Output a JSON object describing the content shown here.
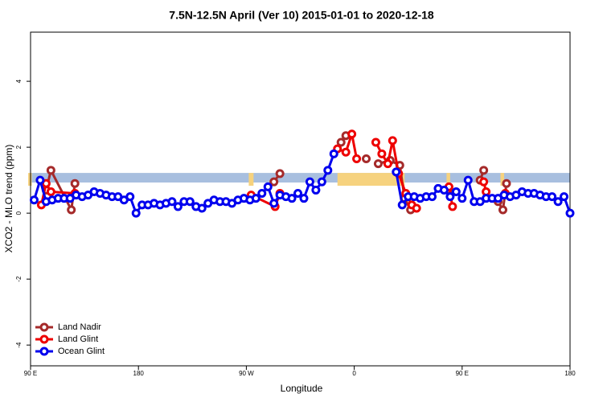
{
  "chart_data": {
    "type": "line",
    "title": "7.5N-12.5N April (Ver 10)   2015-01-01 to 2020-12-18",
    "x_label": "Longitude",
    "y_label": "XCO2 - MLO trend (ppm)",
    "xlim": [
      90,
      540
    ],
    "xticks": [
      {
        "value": 90,
        "label": "90 E"
      },
      {
        "value": 180,
        "label": "180"
      },
      {
        "value": 270,
        "label": "90 W"
      },
      {
        "value": 360,
        "label": "0"
      },
      {
        "value": 450,
        "label": "90 E"
      },
      {
        "value": 540,
        "label": "180"
      }
    ],
    "ylim": [
      -4.63,
      5.49
    ],
    "yticks": [
      -4,
      -2,
      0,
      2,
      4
    ],
    "reference_band": {
      "ymin": 0.93,
      "ymax": 1.22,
      "color": "#a8bfdf"
    },
    "land_mask": {
      "color": "#f6d27e",
      "ranges": [
        [
          88,
          91
        ],
        [
          272,
          276
        ],
        [
          346,
          402
        ],
        [
          437,
          440
        ],
        [
          482,
          485
        ]
      ]
    },
    "legend": "bottom-left",
    "series": [
      {
        "name": "Land Nadir",
        "color": "#a52a2a",
        "x": [
          103,
          107,
          124,
          127,
          null,
          293,
          298,
          null,
          349,
          353,
          null,
          370,
          null,
          380,
          390,
          398,
          402,
          407,
          null,
          439,
          null,
          465,
          468,
          null,
          480,
          484,
          487
        ],
        "values": [
          0.7,
          1.3,
          0.1,
          0.9,
          null,
          0.95,
          1.2,
          null,
          2.15,
          2.35,
          null,
          1.65,
          null,
          1.5,
          1.6,
          1.45,
          0.45,
          0.1,
          null,
          0.7,
          null,
          1.0,
          1.3,
          null,
          0.35,
          0.1,
          0.9
        ]
      },
      {
        "name": "Land Glint",
        "color": "#ee0000",
        "x": [
          99,
          103,
          107,
          127,
          null,
          274,
          294,
          298,
          null,
          346,
          353,
          358,
          362,
          null,
          378,
          383,
          388,
          392,
          397,
          403,
          408,
          412,
          null,
          439,
          442,
          null,
          468,
          470,
          null,
          486
        ],
        "values": [
          0.25,
          0.9,
          0.65,
          0.6,
          null,
          0.55,
          0.2,
          0.6,
          null,
          1.95,
          1.85,
          2.4,
          1.65,
          null,
          2.15,
          1.8,
          1.5,
          2.2,
          1.2,
          0.6,
          0.25,
          0.15,
          null,
          0.8,
          0.2,
          null,
          0.95,
          0.65,
          null,
          0.6
        ]
      },
      {
        "name": "Ocean Glint",
        "color": "#0000ee",
        "x": [
          93,
          98,
          103,
          108,
          113,
          118,
          123,
          128,
          133,
          138,
          143,
          148,
          153,
          158,
          163,
          168,
          173,
          178,
          183,
          188,
          193,
          198,
          203,
          208,
          213,
          218,
          223,
          228,
          233,
          238,
          243,
          248,
          253,
          258,
          263,
          268,
          273,
          278,
          283,
          288,
          293,
          298,
          303,
          308,
          313,
          318,
          323,
          328,
          333,
          338,
          343,
          null,
          395,
          400,
          405,
          410,
          415,
          420,
          425,
          430,
          435,
          440,
          445,
          450,
          455,
          460,
          465,
          470,
          475,
          480,
          485,
          490,
          495,
          500,
          505,
          510,
          515,
          520,
          525,
          530,
          535,
          540
        ],
        "values": [
          0.4,
          1.0,
          0.35,
          0.4,
          0.45,
          0.45,
          0.45,
          0.55,
          0.5,
          0.55,
          0.65,
          0.6,
          0.55,
          0.5,
          0.5,
          0.4,
          0.5,
          0.0,
          0.25,
          0.25,
          0.3,
          0.25,
          0.3,
          0.35,
          0.2,
          0.35,
          0.35,
          0.2,
          0.15,
          0.3,
          0.4,
          0.35,
          0.35,
          0.3,
          0.4,
          0.45,
          0.4,
          0.45,
          0.6,
          0.8,
          0.3,
          0.55,
          0.5,
          0.45,
          0.6,
          0.45,
          0.95,
          0.7,
          0.95,
          1.3,
          1.8,
          null,
          1.25,
          0.25,
          0.5,
          0.5,
          0.45,
          0.5,
          0.5,
          0.75,
          0.7,
          0.5,
          0.65,
          0.45,
          1.0,
          0.35,
          0.35,
          0.45,
          0.45,
          0.45,
          0.55,
          0.5,
          0.55,
          0.65,
          0.6,
          0.6,
          0.55,
          0.5,
          0.5,
          0.35,
          0.5,
          0.0
        ]
      }
    ]
  }
}
